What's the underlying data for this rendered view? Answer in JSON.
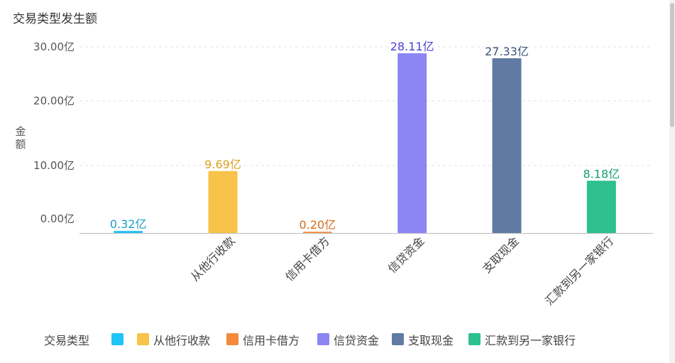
{
  "chart_data": {
    "type": "bar",
    "title": "交易类型发生额",
    "ylabel": "金额",
    "xlabel": "",
    "ylim": [
      0,
      30
    ],
    "yticks": [
      {
        "value": 0,
        "label": "0.00亿"
      },
      {
        "value": 10,
        "label": "10.00亿"
      },
      {
        "value": 20,
        "label": "20.00亿"
      },
      {
        "value": 30,
        "label": "30.00亿"
      }
    ],
    "categories": [
      "",
      "从他行收款",
      "信用卡借方",
      "信贷资金",
      "支取现金",
      "汇款到另一家银行"
    ],
    "values": [
      0.32,
      9.69,
      0.2,
      28.11,
      27.33,
      8.18
    ],
    "data_labels": [
      "0.32亿",
      "9.69亿",
      "0.20亿",
      "28.11亿",
      "27.33亿",
      "8.18亿"
    ],
    "colors": [
      "#1ec4f5",
      "#f7c34a",
      "#f58a3c",
      "#8c86f5",
      "#607ba3",
      "#2ec08e"
    ],
    "label_colors": [
      "#1a9cc8",
      "#d9a321",
      "#d46a1a",
      "#4a3fd6",
      "#3d5478",
      "#14a06a"
    ],
    "legend": {
      "title": "交易类型",
      "placement": "bottom",
      "items": [
        "",
        "从他行收款",
        "信用卡借方",
        "信贷资金",
        "支取现金",
        "汇款到另一家银行"
      ]
    },
    "grid": true
  }
}
